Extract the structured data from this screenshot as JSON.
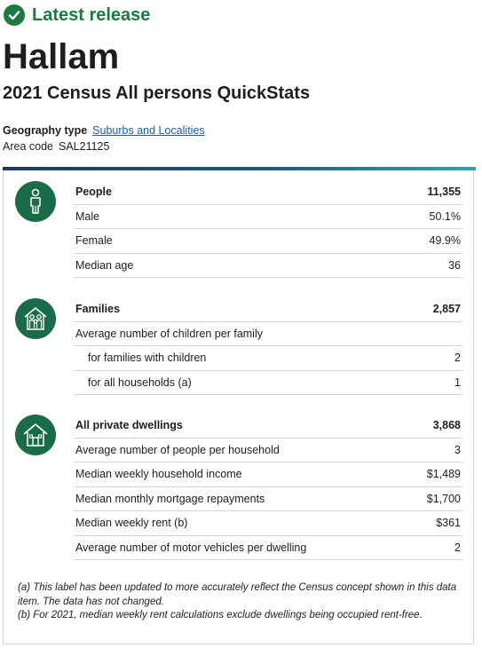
{
  "release": {
    "label": "Latest release"
  },
  "place": {
    "name": "Hallam",
    "subtitle": "2021 Census All persons QuickStats"
  },
  "geography": {
    "type_label": "Geography type",
    "type_value": "Suburbs and Localities",
    "area_label": "Area code",
    "area_value": "SAL21125"
  },
  "colors": {
    "accent_green": "#1a7a3f",
    "icon_green": "#1a6b47",
    "link_blue": "#1a5ea8"
  },
  "sections": {
    "people": {
      "icon": "person-icon",
      "rows": [
        {
          "label": "People",
          "value": "11,355"
        },
        {
          "label": "Male",
          "value": "50.1%"
        },
        {
          "label": "Female",
          "value": "49.9%"
        },
        {
          "label": "Median age",
          "value": "36"
        }
      ]
    },
    "families": {
      "icon": "family-house-icon",
      "rows": [
        {
          "label": "Families",
          "value": "2,857"
        },
        {
          "label": "Average number of children per family",
          "value": ""
        },
        {
          "label": "for families with children",
          "value": "2"
        },
        {
          "label": "for all households (a)",
          "value": "1"
        }
      ]
    },
    "dwellings": {
      "icon": "house-icon",
      "rows": [
        {
          "label": "All private dwellings",
          "value": "3,868"
        },
        {
          "label": "Average number of people per household",
          "value": "3"
        },
        {
          "label": "Median weekly household income",
          "value": "$1,489"
        },
        {
          "label": "Median monthly mortgage repayments",
          "value": "$1,700"
        },
        {
          "label": "Median weekly rent (b)",
          "value": "$361"
        },
        {
          "label": "Average number of motor vehicles per dwelling",
          "value": "2"
        }
      ]
    }
  },
  "notes": {
    "a": "(a) This label has been updated to more accurately reflect the Census concept shown in this data item. The data has not changed.",
    "b": "(b) For 2021, median weekly rent calculations exclude dwellings being occupied rent-free."
  }
}
